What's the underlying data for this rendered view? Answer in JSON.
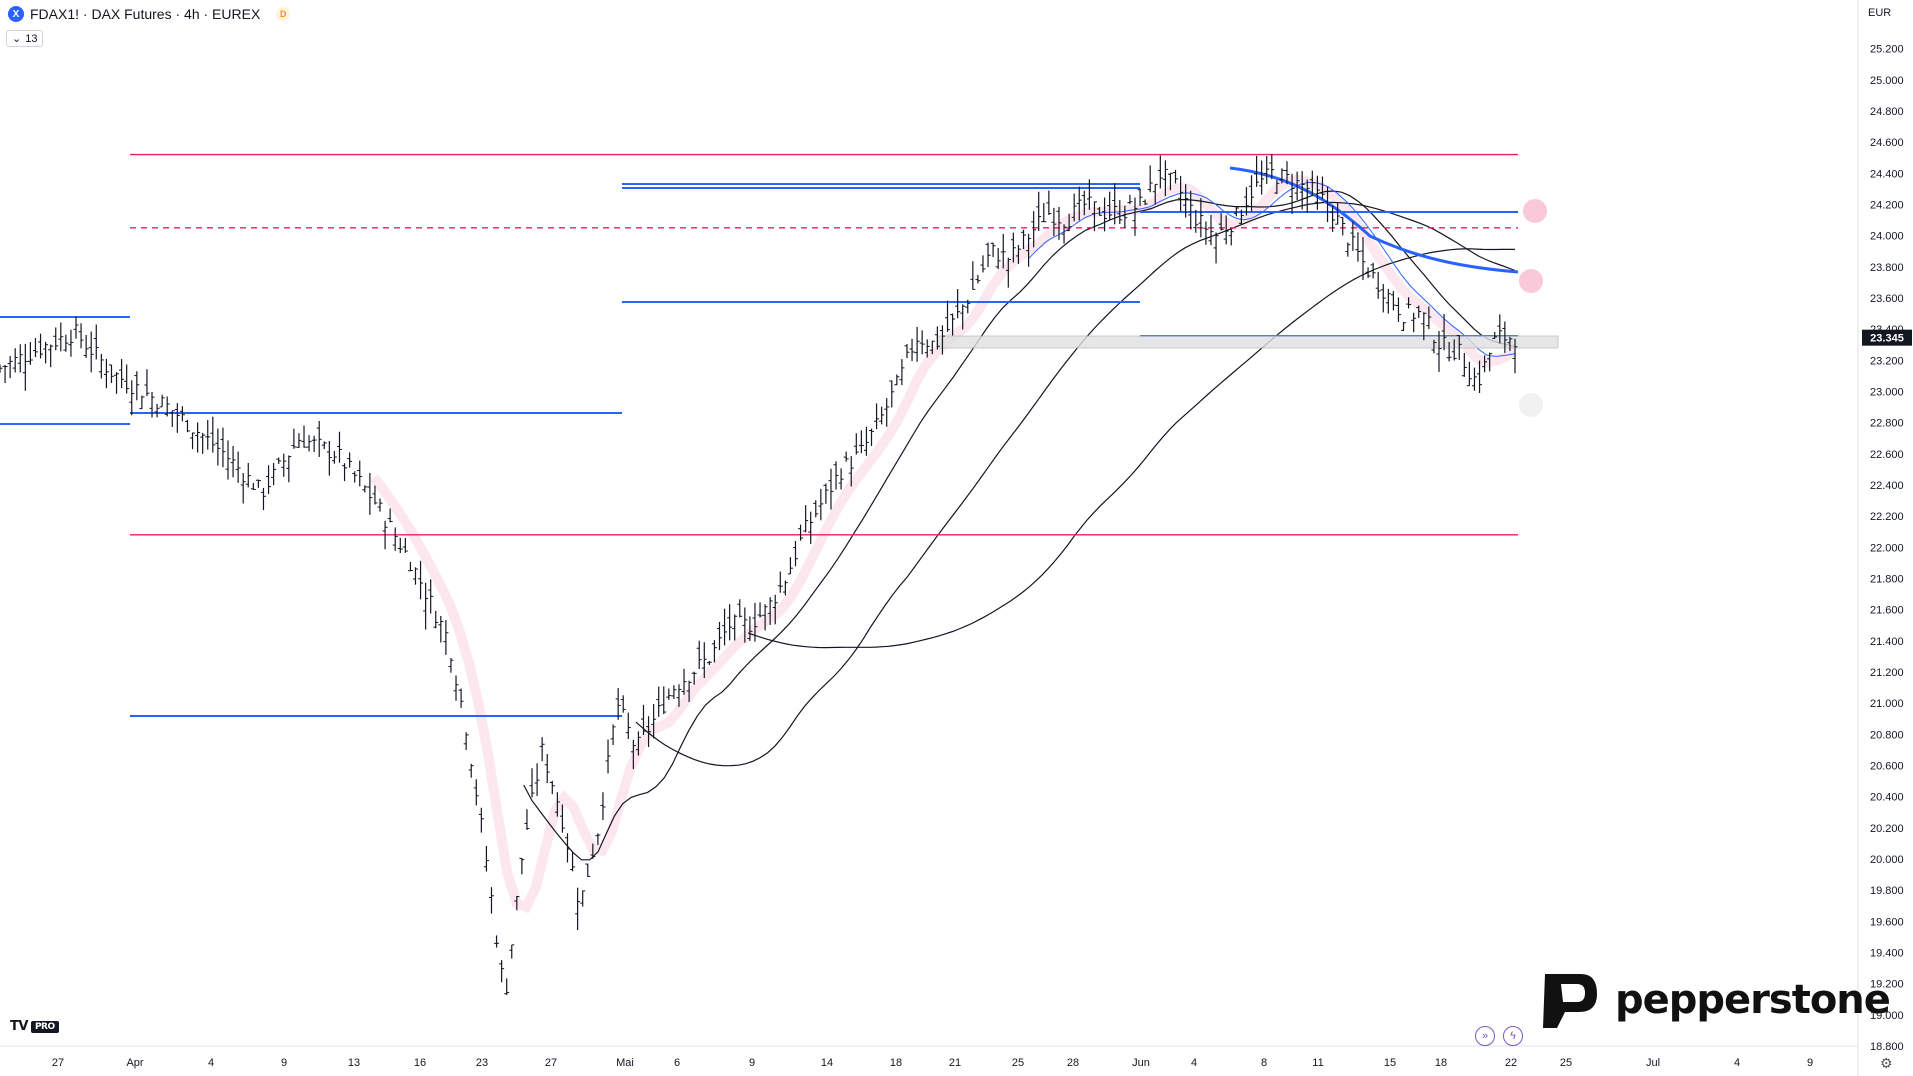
{
  "header": {
    "symbol_icon": "X",
    "title": "FDAX1! · DAX Futures · 4h · EUREX",
    "delay_badge": "D",
    "indicator_count": "13",
    "currency": "EUR"
  },
  "brand": {
    "name": "pepperstone",
    "logo": "pepperstone-p-logo",
    "tv_logo": "TV",
    "tv_pro": "PRO"
  },
  "icons": {
    "settings": "gear-icon",
    "replay": "replay-icon",
    "lightning": "lightning-icon"
  },
  "colors": {
    "bull": "#131722",
    "support": "#2962ff",
    "levels": "#e91e63",
    "cloud": "#f8bbd0"
  },
  "chart_data": {
    "type": "candlestick-ohlc",
    "instrument": "FDAX1! DAX Futures",
    "timeframe": "4h",
    "last_price": "23.345",
    "ylim": [
      18800,
      25300
    ],
    "y_ticks": [
      "25.200",
      "25.000",
      "24.800",
      "24.600",
      "24.400",
      "24.200",
      "24.000",
      "23.800",
      "23.600",
      "23.400",
      "23.200",
      "23.000",
      "22.800",
      "22.600",
      "22.400",
      "22.200",
      "22.000",
      "21.800",
      "21.600",
      "21.400",
      "21.200",
      "21.000",
      "20.800",
      "20.600",
      "20.400",
      "20.200",
      "20.000",
      "19.800",
      "19.600",
      "19.400",
      "19.200",
      "19.000",
      "18.800"
    ],
    "x_ticks": [
      "27",
      "Apr",
      "4",
      "9",
      "13",
      "16",
      "23",
      "27",
      "Mai",
      "6",
      "9",
      "14",
      "18",
      "21",
      "25",
      "28",
      "Jun",
      "4",
      "8",
      "11",
      "15",
      "18",
      "22",
      "25",
      "Jul",
      "4",
      "9"
    ],
    "price_path": [
      [
        0,
        23150
      ],
      [
        2,
        23270
      ],
      [
        4,
        23380
      ],
      [
        6,
        23120
      ],
      [
        9,
        22900
      ],
      [
        12,
        22600
      ],
      [
        14,
        22350
      ],
      [
        16,
        22700
      ],
      [
        18,
        22600
      ],
      [
        20,
        22300
      ],
      [
        22,
        21900
      ],
      [
        24,
        21400
      ],
      [
        25,
        20800
      ],
      [
        26,
        20000
      ],
      [
        27,
        19100
      ],
      [
        28,
        20100
      ],
      [
        29,
        20700
      ],
      [
        30,
        20300
      ],
      [
        31,
        19700
      ],
      [
        32,
        20200
      ],
      [
        33,
        21000
      ],
      [
        34,
        20700
      ],
      [
        35,
        20900
      ],
      [
        36,
        21100
      ],
      [
        37,
        21200
      ],
      [
        38,
        21300
      ],
      [
        39,
        21500
      ],
      [
        40,
        21500
      ],
      [
        41,
        21600
      ],
      [
        42,
        21800
      ],
      [
        43,
        22100
      ],
      [
        44,
        22300
      ],
      [
        45,
        22500
      ],
      [
        46,
        22600
      ],
      [
        47,
        22800
      ],
      [
        48,
        23050
      ],
      [
        49,
        23350
      ],
      [
        50,
        23300
      ],
      [
        51,
        23450
      ],
      [
        52,
        23650
      ],
      [
        53,
        23900
      ],
      [
        54,
        23850
      ],
      [
        55,
        24000
      ],
      [
        56,
        24150
      ],
      [
        57,
        24100
      ],
      [
        58,
        24200
      ],
      [
        59,
        24150
      ],
      [
        60,
        24150
      ],
      [
        61,
        24200
      ],
      [
        62,
        24400
      ],
      [
        63,
        24300
      ],
      [
        64,
        24100
      ],
      [
        65,
        24000
      ],
      [
        66,
        24100
      ],
      [
        67,
        24300
      ],
      [
        68,
        24400
      ],
      [
        69,
        24350
      ],
      [
        70,
        24300
      ],
      [
        71,
        24200
      ],
      [
        72,
        24000
      ],
      [
        73,
        23800
      ],
      [
        74,
        23650
      ],
      [
        75,
        23500
      ],
      [
        76,
        23500
      ],
      [
        77,
        23300
      ],
      [
        78,
        23250
      ],
      [
        79,
        23050
      ],
      [
        80,
        23350
      ],
      [
        81,
        23345
      ]
    ],
    "levels": [
      {
        "name": "resistance-24500",
        "value": 24520,
        "style": "solid",
        "color": "#e91e63"
      },
      {
        "name": "resistance-24050",
        "value": 24050,
        "style": "dashed",
        "color": "#e91e63"
      },
      {
        "name": "support-22080",
        "value": 22080,
        "style": "solid",
        "color": "#e91e63"
      }
    ]
  }
}
